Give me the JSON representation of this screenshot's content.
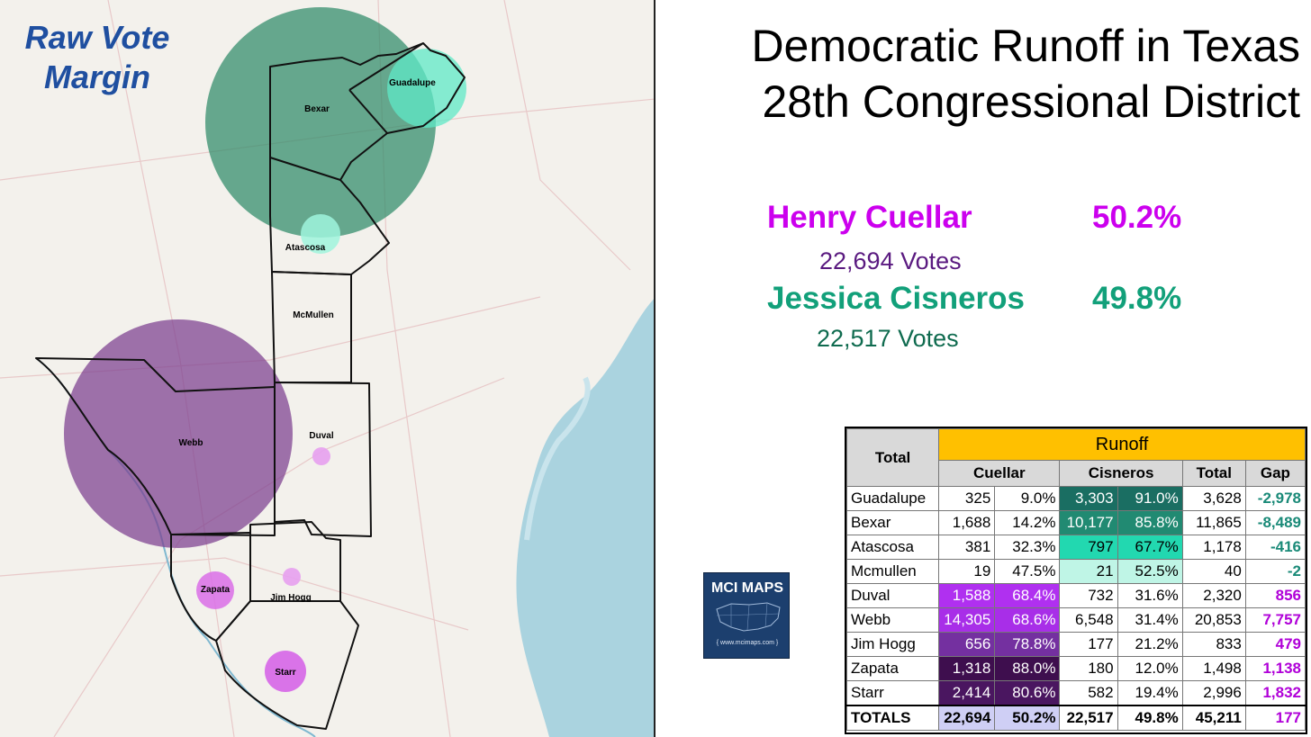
{
  "map": {
    "title_line1": "Raw Vote",
    "title_line2": "Margin",
    "colors": {
      "cisneros": "#2e8b68",
      "cisneros_light": "#5fe8c7",
      "cuellar": "#7b3f8f",
      "cuellar_light": "#d96fe8"
    },
    "counties": {
      "bexar": "Bexar",
      "guadalupe": "Guadalupe",
      "atascosa": "Atascosa",
      "mcmullen": "McMullen",
      "webb": "Webb",
      "duval": "Duval",
      "zapata": "Zapata",
      "jim_hogg": "Jim Hogg",
      "starr": "Starr"
    }
  },
  "header": {
    "line1": "Democratic Runoff in Texas",
    "line2": "28th Congressional District"
  },
  "candidates": {
    "cuellar": {
      "name": "Henry Cuellar",
      "pct": "50.2%",
      "votes": "22,694 Votes",
      "color": "#cc00ee",
      "votes_color": "#5a1a80"
    },
    "cisneros": {
      "name": "Jessica Cisneros",
      "pct": "49.8%",
      "votes": "22,517 Votes",
      "color": "#12a07a",
      "votes_color": "#0f6b4f"
    }
  },
  "table": {
    "total_header": "Total",
    "runoff_header": "Runoff",
    "columns": {
      "cuellar": "Cuellar",
      "cisneros": "Cisneros",
      "total": "Total",
      "gap": "Gap"
    },
    "rows": [
      {
        "county": "Guadalupe",
        "c_votes": "325",
        "c_pct": "9.0%",
        "s_votes": "3,303",
        "s_pct": "91.0%",
        "total": "3,628",
        "gap": "-2,978",
        "c_bg": "#ffffff",
        "c_fg": "#000000",
        "s_bg": "#1a6e62",
        "s_fg": "#ffffff",
        "gap_color": "#1a8a78"
      },
      {
        "county": "Bexar",
        "c_votes": "1,688",
        "c_pct": "14.2%",
        "s_votes": "10,177",
        "s_pct": "85.8%",
        "total": "11,865",
        "gap": "-8,489",
        "c_bg": "#ffffff",
        "c_fg": "#000000",
        "s_bg": "#218a72",
        "s_fg": "#ffffff",
        "gap_color": "#1a8a78"
      },
      {
        "county": "Atascosa",
        "c_votes": "381",
        "c_pct": "32.3%",
        "s_votes": "797",
        "s_pct": "67.7%",
        "total": "1,178",
        "gap": "-416",
        "c_bg": "#ffffff",
        "c_fg": "#000000",
        "s_bg": "#22d8b0",
        "s_fg": "#000000",
        "gap_color": "#1a8a78"
      },
      {
        "county": "Mcmullen",
        "c_votes": "19",
        "c_pct": "47.5%",
        "s_votes": "21",
        "s_pct": "52.5%",
        "total": "40",
        "gap": "-2",
        "c_bg": "#ffffff",
        "c_fg": "#000000",
        "s_bg": "#bff5e6",
        "s_fg": "#000000",
        "gap_color": "#1a8a78"
      },
      {
        "county": "Duval",
        "c_votes": "1,588",
        "c_pct": "68.4%",
        "s_votes": "732",
        "s_pct": "31.6%",
        "total": "2,320",
        "gap": "856",
        "c_bg": "#b030f0",
        "c_fg": "#ffffff",
        "s_bg": "#ffffff",
        "s_fg": "#000000",
        "gap_color": "#b000d8"
      },
      {
        "county": "Webb",
        "c_votes": "14,305",
        "c_pct": "68.6%",
        "s_votes": "6,548",
        "s_pct": "31.4%",
        "total": "20,853",
        "gap": "7,757",
        "c_bg": "#a82ee8",
        "c_fg": "#ffffff",
        "s_bg": "#ffffff",
        "s_fg": "#000000",
        "gap_color": "#b000d8"
      },
      {
        "county": "Jim Hogg",
        "c_votes": "656",
        "c_pct": "78.8%",
        "s_votes": "177",
        "s_pct": "21.2%",
        "total": "833",
        "gap": "479",
        "c_bg": "#7430a0",
        "c_fg": "#ffffff",
        "s_bg": "#ffffff",
        "s_fg": "#000000",
        "gap_color": "#b000d8"
      },
      {
        "county": "Zapata",
        "c_votes": "1,318",
        "c_pct": "88.0%",
        "s_votes": "180",
        "s_pct": "12.0%",
        "total": "1,498",
        "gap": "1,138",
        "c_bg": "#3e0e4e",
        "c_fg": "#ffffff",
        "s_bg": "#ffffff",
        "s_fg": "#000000",
        "gap_color": "#b000d8"
      },
      {
        "county": "Starr",
        "c_votes": "2,414",
        "c_pct": "80.6%",
        "s_votes": "582",
        "s_pct": "19.4%",
        "total": "2,996",
        "gap": "1,832",
        "c_bg": "#4a1660",
        "c_fg": "#ffffff",
        "s_bg": "#ffffff",
        "s_fg": "#000000",
        "gap_color": "#b000d8"
      }
    ],
    "totals": {
      "label": "TOTALS",
      "c_votes": "22,694",
      "c_pct": "50.2%",
      "s_votes": "22,517",
      "s_pct": "49.8%",
      "total": "45,211",
      "gap": "177",
      "c_bg": "#cfcff5",
      "gap_color": "#b000d8"
    }
  },
  "logo": {
    "text": "MCI MAPS",
    "url": "{ www.mcimaps.com }"
  }
}
